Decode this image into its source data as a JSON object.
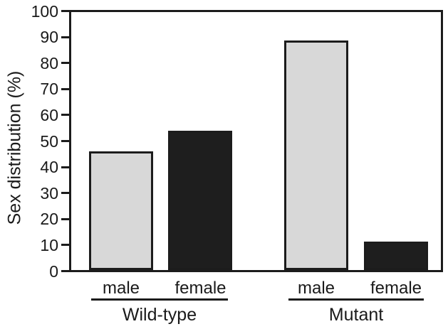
{
  "chart_data": {
    "type": "bar",
    "ylabel": "Sex distribution (%)",
    "xlabel": "",
    "ylim": [
      0,
      100
    ],
    "yticks": [
      0,
      10,
      20,
      30,
      40,
      50,
      60,
      70,
      80,
      90,
      100
    ],
    "grid": false,
    "legend": "none",
    "categories": [
      "Wild-type",
      "Mutant"
    ],
    "series": [
      {
        "name": "male",
        "values": [
          46,
          89
        ],
        "fill": "#d8d8d8"
      },
      {
        "name": "female",
        "values": [
          54,
          11
        ],
        "fill": "#1e1e1e"
      }
    ],
    "colors": {
      "bar_border": "#1c1c1c",
      "axis": "#1c1c1c",
      "text": "#1a1a1a",
      "background": "#ffffff"
    }
  }
}
